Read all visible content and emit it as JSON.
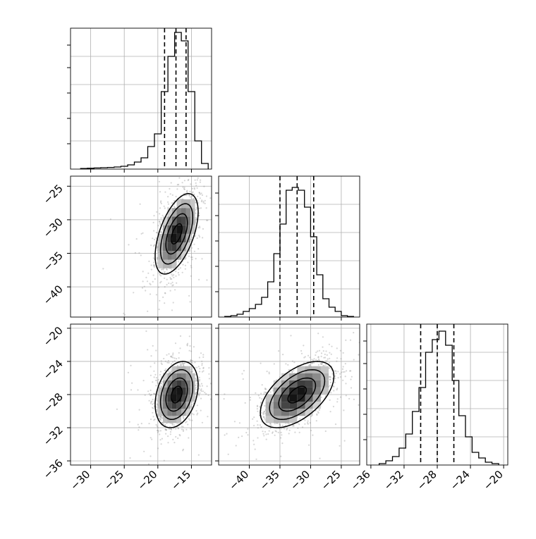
{
  "chart_data": {
    "type": "corner",
    "panels": [
      {
        "id": "hist-p1",
        "type": "histogram",
        "row": 0,
        "col": 0,
        "xlim": [
          -33,
          -12
        ],
        "ylim": [
          0,
          1.0
        ],
        "x_ticks": [
          -30,
          -25,
          -20,
          -15
        ],
        "bin_edges": [
          -31.5,
          -30.5,
          -29.5,
          -28.5,
          -27.5,
          -26.5,
          -25.5,
          -24.5,
          -23.5,
          -22.5,
          -21.5,
          -20.5,
          -19.5,
          -18.5,
          -17.5,
          -16.5,
          -15.5,
          -14.5,
          -13.5,
          -12.5
        ],
        "counts": [
          0.004,
          0.006,
          0.008,
          0.01,
          0.012,
          0.015,
          0.02,
          0.03,
          0.05,
          0.08,
          0.16,
          0.25,
          0.55,
          0.8,
          0.97,
          0.91,
          0.55,
          0.2,
          0.04
        ],
        "quantiles": [
          -19.0,
          -17.3,
          -15.8
        ]
      },
      {
        "id": "hist-p2",
        "type": "histogram",
        "row": 1,
        "col": 1,
        "xlim": [
          -45,
          -22
        ],
        "ylim": [
          0,
          1.0
        ],
        "x_ticks": [
          -40,
          -35,
          -30,
          -25
        ],
        "bin_edges": [
          -44,
          -43,
          -42,
          -41,
          -40,
          -39,
          -38,
          -37,
          -36,
          -35,
          -34,
          -33,
          -32,
          -31,
          -30,
          -29,
          -28,
          -27,
          -26,
          -25,
          -24,
          -23
        ],
        "counts": [
          0.004,
          0.01,
          0.02,
          0.04,
          0.06,
          0.09,
          0.14,
          0.25,
          0.45,
          0.66,
          0.9,
          0.92,
          0.9,
          0.78,
          0.57,
          0.3,
          0.13,
          0.07,
          0.04,
          0.01,
          0.004
        ],
        "quantiles": [
          -35.0,
          -32.2,
          -29.5
        ]
      },
      {
        "id": "hist-p3",
        "type": "histogram",
        "row": 2,
        "col": 2,
        "xlim": [
          -36.5,
          -19.5
        ],
        "ylim": [
          0,
          1.0
        ],
        "x_ticks": [
          -36,
          -32,
          -28,
          -24,
          -20
        ],
        "bin_edges": [
          -35,
          -34.2,
          -33.4,
          -32.6,
          -31.8,
          -31,
          -30.2,
          -29.4,
          -28.6,
          -27.8,
          -27,
          -26.2,
          -25.4,
          -24.6,
          -23.8,
          -23,
          -22.2,
          -21.4,
          -20.6
        ],
        "counts": [
          0.01,
          0.03,
          0.06,
          0.12,
          0.22,
          0.38,
          0.55,
          0.8,
          0.89,
          0.95,
          0.85,
          0.6,
          0.35,
          0.2,
          0.09,
          0.05,
          0.02,
          0.01
        ],
        "quantiles": [
          -30.0,
          -28.0,
          -26.0
        ]
      },
      {
        "id": "kde-p2-vs-p1",
        "type": "kde2d",
        "row": 1,
        "col": 0,
        "xlim": [
          -33,
          -12
        ],
        "ylim": [
          -44.5,
          -23.5
        ],
        "x_ticks": [
          -30,
          -25,
          -20,
          -15
        ],
        "y_ticks": [
          -25,
          -30,
          -35,
          -40
        ],
        "center": [
          -17.2,
          -32.1
        ],
        "sigma_x": 1.6,
        "sigma_y": 3.0,
        "rho": 0.55
      },
      {
        "id": "kde-p3-vs-p1",
        "type": "kde2d",
        "row": 2,
        "col": 0,
        "xlim": [
          -33,
          -12
        ],
        "ylim": [
          -36.5,
          -19.5
        ],
        "x_ticks": [
          -30,
          -25,
          -20,
          -15
        ],
        "y_ticks": [
          -20,
          -24,
          -28,
          -32,
          -36
        ],
        "center": [
          -17.2,
          -28.0
        ],
        "sigma_x": 1.6,
        "sigma_y": 2.0,
        "rho": 0.3
      },
      {
        "id": "kde-p3-vs-p2",
        "type": "kde2d",
        "row": 2,
        "col": 1,
        "xlim": [
          -45,
          -22
        ],
        "ylim": [
          -36.5,
          -19.5
        ],
        "x_ticks": [
          -40,
          -35,
          -30,
          -25
        ],
        "y_ticks": [
          -20,
          -24,
          -28,
          -32,
          -36
        ],
        "center": [
          -32.2,
          -28.0
        ],
        "sigma_x": 3.0,
        "sigma_y": 2.0,
        "rho": 0.55
      }
    ],
    "legend": "none",
    "grid": true,
    "title": "",
    "xlabel": "",
    "ylabel": "",
    "colors": {
      "line": "#000000",
      "grid": "#b0b0b0",
      "points": "#8a8a8a"
    }
  }
}
